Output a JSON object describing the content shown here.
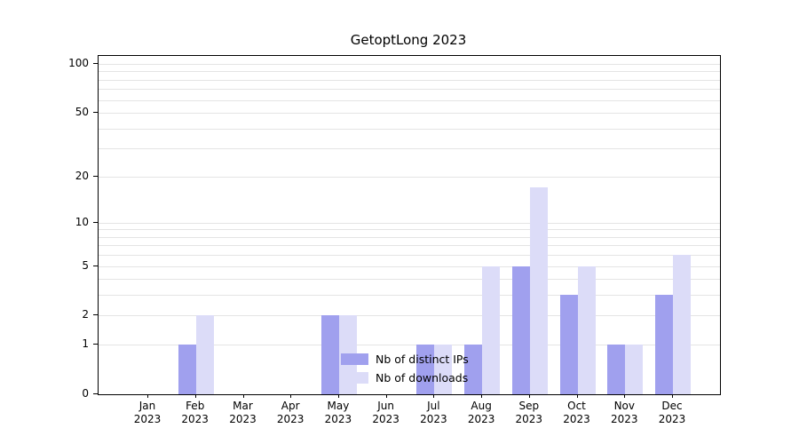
{
  "title": "GetoptLong 2023",
  "legend": {
    "items": [
      {
        "label": "Nb of distinct IPs",
        "color": "#a0a0ee"
      },
      {
        "label": "Nb of downloads",
        "color": "#dcdcf8"
      }
    ]
  },
  "chart_data": {
    "type": "bar",
    "title": "GetoptLong 2023",
    "categories": [
      "Jan",
      "Feb",
      "Mar",
      "Apr",
      "May",
      "Jun",
      "Jul",
      "Aug",
      "Sep",
      "Oct",
      "Nov",
      "Dec"
    ],
    "year": "2023",
    "series": [
      {
        "name": "Nb of distinct IPs",
        "color": "#a0a0ee",
        "values": [
          0,
          1,
          0,
          0,
          2,
          0,
          1,
          1,
          5,
          3,
          1,
          3
        ]
      },
      {
        "name": "Nb of downloads",
        "color": "#dcdcf8",
        "values": [
          0,
          2,
          0,
          0,
          2,
          0,
          1,
          5,
          17,
          5,
          1,
          6
        ]
      }
    ],
    "xlabel": "",
    "ylabel": "",
    "yscale": "log1p",
    "ylim": [
      0,
      112
    ],
    "yticks": [
      0,
      1,
      2,
      5,
      10,
      20,
      50,
      100
    ],
    "grid_values": [
      1,
      2,
      3,
      4,
      5,
      6,
      7,
      8,
      9,
      10,
      20,
      30,
      40,
      50,
      60,
      70,
      80,
      90,
      100
    ],
    "grid": "horizontal",
    "legend_position": "lower center"
  }
}
